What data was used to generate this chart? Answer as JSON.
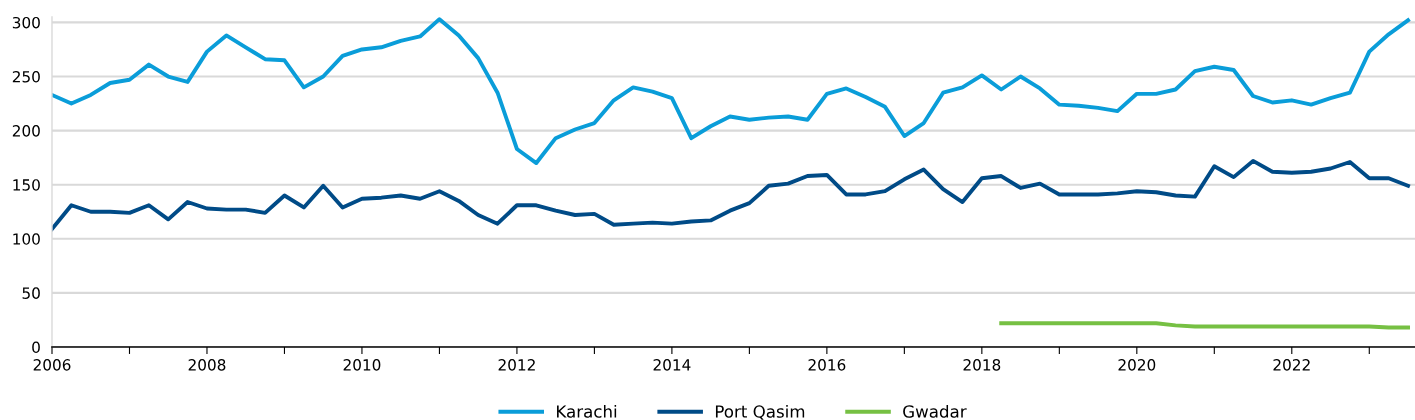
{
  "chart_data": {
    "type": "line",
    "x": [
      2006.0,
      2006.25,
      2006.5,
      2006.75,
      2007.0,
      2007.25,
      2007.5,
      2007.75,
      2008.0,
      2008.25,
      2008.5,
      2008.75,
      2009.0,
      2009.25,
      2009.5,
      2009.75,
      2010.0,
      2010.25,
      2010.5,
      2010.75,
      2011.0,
      2011.25,
      2011.5,
      2011.75,
      2012.0,
      2012.25,
      2012.5,
      2012.75,
      2013.0,
      2013.25,
      2013.5,
      2013.75,
      2014.0,
      2014.25,
      2014.5,
      2014.75,
      2015.0,
      2015.25,
      2015.5,
      2015.75,
      2016.0,
      2016.25,
      2016.5,
      2016.75,
      2017.0,
      2017.25,
      2017.5,
      2017.75,
      2018.0,
      2018.25,
      2018.5,
      2018.75,
      2019.0,
      2019.25,
      2019.5,
      2019.75,
      2020.0,
      2020.25,
      2020.5,
      2020.75,
      2021.0,
      2021.25,
      2021.5,
      2021.75,
      2022.0,
      2022.25,
      2022.5,
      2022.75,
      2023.0,
      2023.25,
      2023.5
    ],
    "series": [
      {
        "name": "Karachi",
        "color": "#0a9dd9",
        "values": [
          233,
          225,
          233,
          244,
          247,
          261,
          250,
          245,
          273,
          288,
          277,
          266,
          265,
          240,
          250,
          269,
          275,
          277,
          283,
          287,
          303,
          288,
          267,
          235,
          183,
          170,
          193,
          201,
          207,
          228,
          240,
          236,
          230,
          193,
          204,
          213,
          210,
          212,
          213,
          210,
          234,
          239,
          231,
          222,
          195,
          207,
          235,
          240,
          251,
          238,
          250,
          239,
          224,
          223,
          221,
          218,
          234,
          234,
          238,
          255,
          259,
          256,
          232,
          226,
          228,
          224,
          230,
          235,
          273,
          289,
          302
        ]
      },
      {
        "name": "Port Qasim",
        "color": "#004b87",
        "values": [
          109,
          131,
          125,
          125,
          124,
          131,
          118,
          134,
          128,
          127,
          127,
          124,
          140,
          129,
          149,
          129,
          137,
          138,
          140,
          137,
          144,
          135,
          122,
          114,
          131,
          131,
          126,
          122,
          123,
          113,
          114,
          115,
          114,
          116,
          117,
          126,
          133,
          149,
          151,
          158,
          159,
          141,
          141,
          144,
          155,
          164,
          146,
          134,
          156,
          158,
          147,
          151,
          141,
          141,
          141,
          142,
          144,
          143,
          140,
          139,
          167,
          157,
          172,
          162,
          161,
          162,
          165,
          171,
          156,
          156,
          149
        ]
      },
      {
        "name": "Gwadar",
        "color": "#76c043",
        "x": [
          2018.25,
          2018.5,
          2018.75,
          2019.0,
          2019.25,
          2019.5,
          2019.75,
          2020.0,
          2020.25,
          2020.5,
          2020.75,
          2021.0,
          2021.25,
          2021.5,
          2021.75,
          2022.0,
          2022.25,
          2022.5,
          2022.75,
          2023.0,
          2023.25,
          2023.5
        ],
        "values": [
          22,
          22,
          22,
          22,
          22,
          22,
          22,
          22,
          22,
          20,
          19,
          19,
          19,
          19,
          19,
          19,
          19,
          19,
          19,
          19,
          18,
          18
        ]
      }
    ],
    "xlim": [
      2006,
      2023.59
    ],
    "xticks": [
      2006,
      {
        "value": 2007,
        "label": null
      },
      2008,
      {
        "value": 2009,
        "label": null
      },
      2010,
      {
        "value": 2011,
        "label": null
      },
      2012,
      {
        "value": 2013,
        "label": null
      },
      2014,
      {
        "value": 2015,
        "label": null
      },
      2016,
      {
        "value": 2017,
        "label": null
      },
      2018,
      {
        "value": 2019,
        "label": null
      },
      2020,
      {
        "value": 2021,
        "label": null
      },
      2022,
      {
        "value": 2023,
        "label": null
      }
    ],
    "ylim": [
      0,
      305
    ],
    "yticks": [
      0,
      50,
      100,
      150,
      200,
      250,
      300
    ],
    "grid": "y",
    "legend": "bottom",
    "line_style": "solid",
    "marker": "none"
  }
}
